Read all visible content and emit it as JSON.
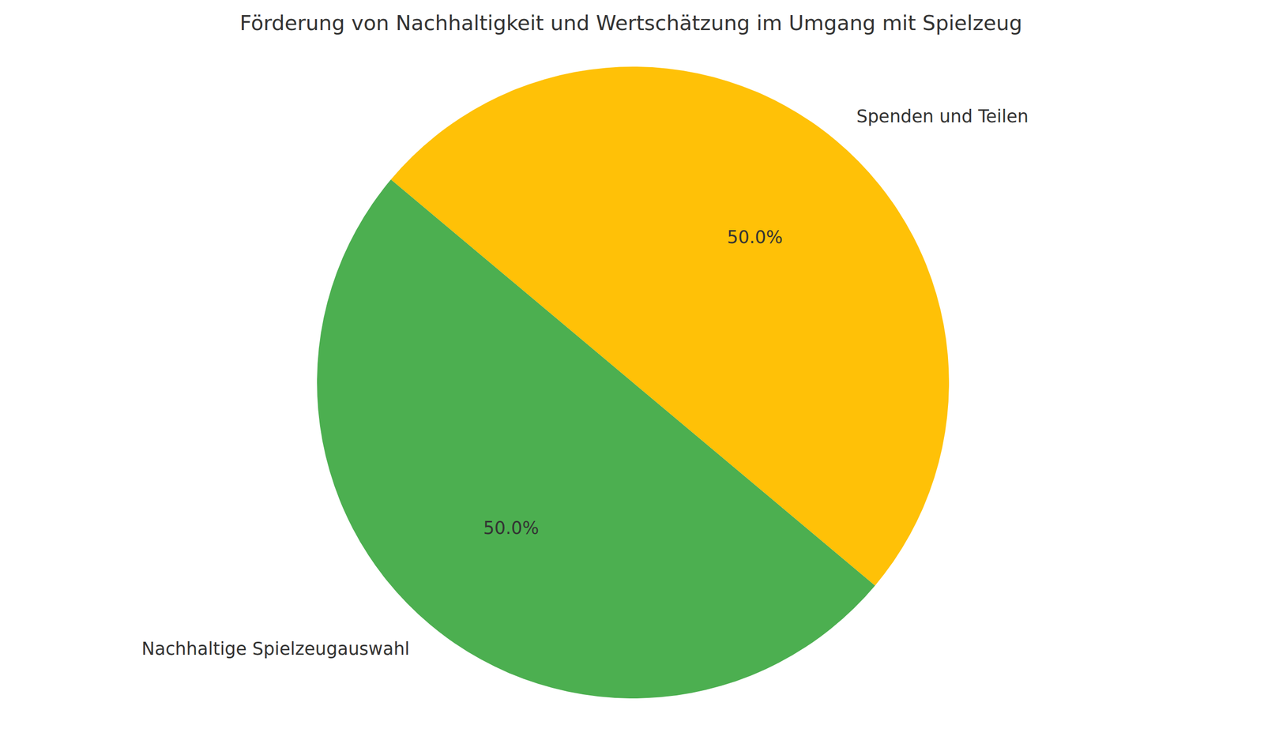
{
  "chart_data": {
    "type": "pie",
    "title": "Förderung von Nachhaltigkeit und Wertschätzung im Umgang mit Spielzeug",
    "categories": [
      "Nachhaltige Spielzeugauswahl",
      "Spenden und Teilen"
    ],
    "values": [
      50,
      50
    ],
    "value_labels": [
      "50.0%",
      "50.0%"
    ],
    "colors": [
      "#4caf50",
      "#ffc107"
    ],
    "data_labels": true
  }
}
